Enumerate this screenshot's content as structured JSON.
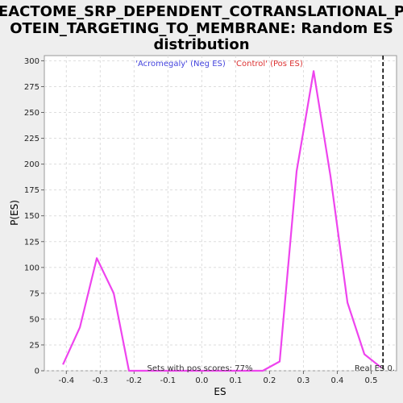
{
  "chart_data": {
    "type": "line",
    "title_lines": [
      "REACTOME_SRP_DEPENDENT_COTRANSLATIONAL_PR",
      "OTEIN_TARGETING_TO_MEMBRANE: Random ES",
      "distribution"
    ],
    "xlabel": "ES",
    "ylabel": "P(ES)",
    "xlim": [
      -0.465,
      0.575
    ],
    "ylim": [
      0,
      305
    ],
    "x_ticks": [
      -0.4,
      -0.3,
      -0.2,
      -0.1,
      0.0,
      0.1,
      0.2,
      0.3,
      0.4,
      0.5
    ],
    "x_tick_labels": [
      "-0.4",
      "-0.3",
      "-0.2",
      "-0.1",
      "0.0",
      "0.1",
      "0.2",
      "0.3",
      "0.4",
      "0.5"
    ],
    "y_ticks": [
      0,
      25,
      50,
      75,
      100,
      125,
      150,
      175,
      200,
      225,
      250,
      275,
      300
    ],
    "y_tick_labels": [
      "0",
      "25",
      "50",
      "75",
      "100",
      "125",
      "150",
      "175",
      "200",
      "225",
      "250",
      "275",
      "300"
    ],
    "grid": true,
    "series": [
      {
        "color": "#ee44ee",
        "x": [
          -0.41,
          -0.36,
          -0.31,
          -0.26,
          -0.215,
          -0.21,
          -0.15,
          0.18,
          0.23,
          0.28,
          0.33,
          0.38,
          0.43,
          0.48,
          0.53
        ],
        "y": [
          6,
          42,
          109,
          75,
          0,
          0,
          0,
          0,
          9,
          193,
          290,
          188,
          66,
          16,
          3
        ]
      }
    ],
    "legend_entries": [
      {
        "text": "'Acromegaly' (Neg ES)",
        "color": "#4444dd"
      },
      {
        "text": "'Control' (Pos ES)",
        "color": "#dd3333"
      }
    ],
    "real_es": {
      "x": 0.535,
      "label": "Real ES 0."
    },
    "note": "Sets with pos scores: 77%"
  }
}
